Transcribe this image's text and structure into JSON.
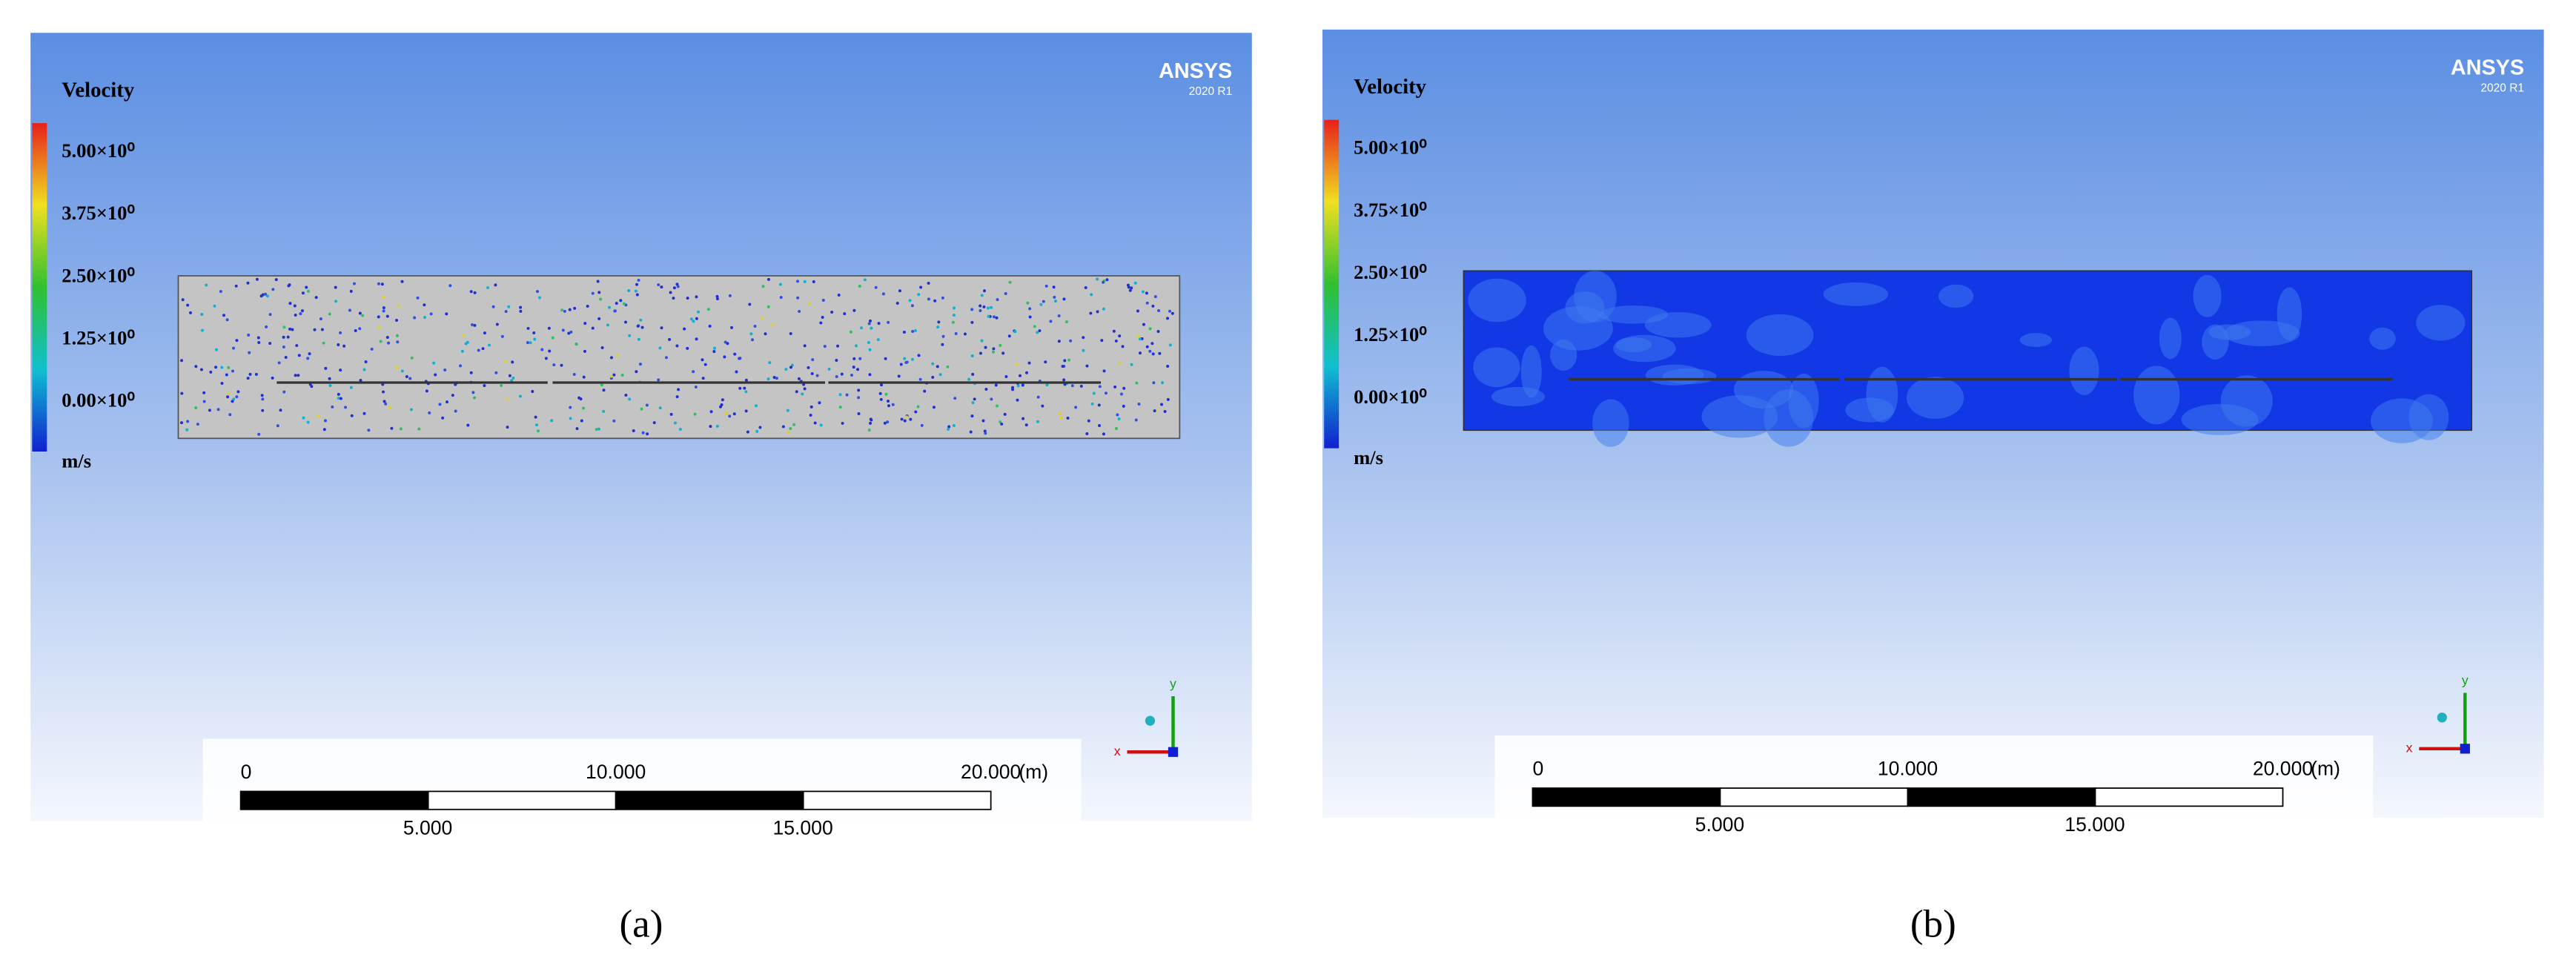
{
  "panels": [
    {
      "caption": "(a)",
      "legend": {
        "title": "Velocity",
        "labels": [
          "5.00×10⁰",
          "3.75×10⁰",
          "2.50×10⁰",
          "1.25×10⁰",
          "0.00×10⁰"
        ],
        "unit": "m/s"
      },
      "logo": {
        "name": "ANSYS",
        "version": "2020 R1"
      },
      "scale_bar": {
        "top_labels": [
          "0",
          "10.000",
          "20.000"
        ],
        "unit": "(m)",
        "bottom_labels": [
          "5.000",
          "15.000"
        ]
      },
      "triad": {
        "x": "x",
        "y": "y"
      }
    },
    {
      "caption": "(b)",
      "legend": {
        "title": "Velocity",
        "labels": [
          "5.00×10⁰",
          "3.75×10⁰",
          "2.50×10⁰",
          "1.25×10⁰",
          "0.00×10⁰"
        ],
        "unit": "m/s"
      },
      "logo": {
        "name": "ANSYS",
        "version": "2020 R1"
      },
      "scale_bar": {
        "top_labels": [
          "0",
          "10.000",
          "20.000"
        ],
        "unit": "(m)",
        "bottom_labels": [
          "5.000",
          "15.000"
        ]
      },
      "triad": {
        "x": "x",
        "y": "y"
      }
    }
  ]
}
